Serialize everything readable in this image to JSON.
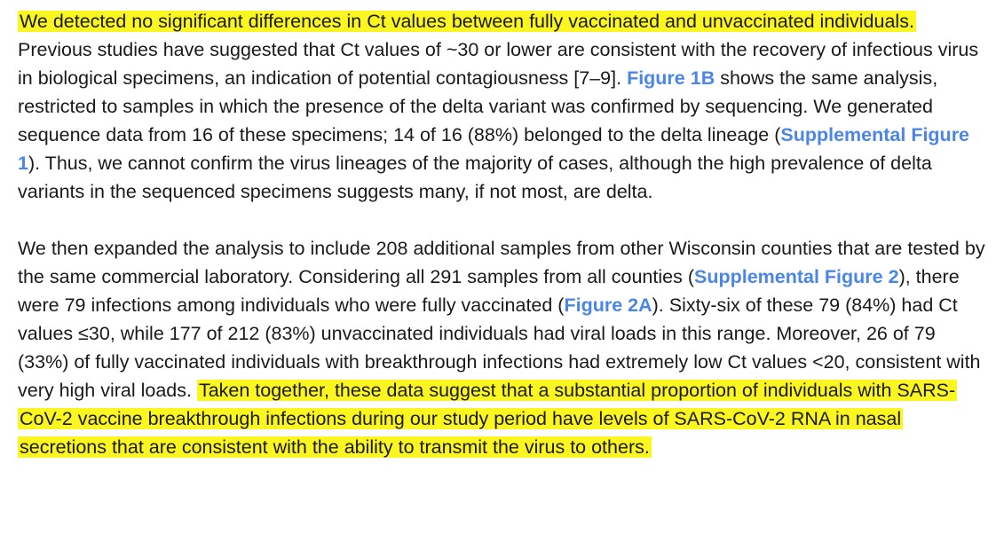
{
  "document": {
    "paragraph_1": {
      "highlight": "We detected no significant differences in Ct values between fully vaccinated and unvaccinated individuals.",
      "text_a": " Previous studies have suggested that Ct values of ~30 or lower are consistent with the recovery of infectious virus in biological specimens, an indication of potential contagiousness [7–9]. ",
      "ref_figure_1b": "Figure 1B",
      "text_b": " shows the same analysis, restricted to samples in which the presence of the delta variant was confirmed by sequencing. We generated sequence data from 16 of these specimens; 14 of 16 (88%) belonged to the delta lineage (",
      "ref_supp_fig_1": "Supplemental Figure 1",
      "text_c": "). Thus, we cannot confirm the virus lineages of the majority of cases, although the high prevalence of delta variants in the sequenced specimens suggests many, if not most, are delta."
    },
    "paragraph_2": {
      "text_a": "We then expanded the analysis to include 208 additional samples from other Wisconsin counties that are tested by the same commercial laboratory. Considering all 291 samples from all counties (",
      "ref_supp_fig_2": "Supplemental Figure 2",
      "text_b": "), there were 79 infections among individuals who were fully vaccinated (",
      "ref_figure_2a": "Figure 2A",
      "text_c": "). Sixty-six of these 79 (84%) had Ct values ≤30, while 177 of 212 (83%) unvaccinated individuals had viral loads in this range. Moreover, 26 of 79 (33%) of fully vaccinated individuals with breakthrough infections had extremely low Ct values <20, consistent with very high viral loads. ",
      "highlight": "Taken together, these data suggest that a substantial proportion of individuals with SARS-CoV-2 vaccine breakthrough infections during our study period have levels of SARS-CoV-2 RNA in nasal secretions that are consistent with the ability to transmit the virus to others."
    },
    "colors": {
      "highlight": "#fbf520",
      "link": "#4a86e8",
      "text": "#1a1a1a"
    }
  }
}
